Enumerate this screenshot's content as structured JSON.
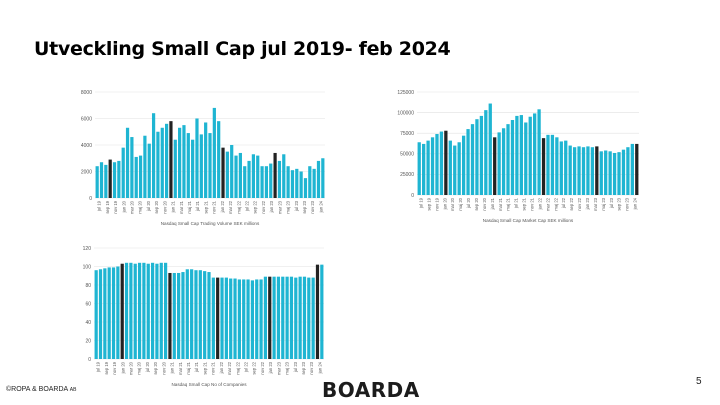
{
  "slide": {
    "title": "Utveckling Small Cap jul 2019- feb 2024",
    "footer_left": "©ROPA & BOARDA",
    "footer_left_suffix": "AB",
    "logo_text": "BOARDA",
    "page_number": "5"
  },
  "colors": {
    "bar": "#1fb5d2",
    "highlight": "#222222",
    "grid": "#e2e2e2"
  },
  "chart_data": [
    {
      "type": "bar",
      "xlabel": "Nasdaq Small Cap Trading Volume SEK millions",
      "ylim": [
        0,
        8000
      ],
      "yticks": [
        0,
        2000,
        4000,
        6000,
        8000
      ],
      "x_tick_labels": [
        "jul 19",
        "sep 19",
        "nov 19",
        "jan 20",
        "mar 20",
        "maj 20",
        "jul 20",
        "sep 20",
        "nov 20",
        "jan 21",
        "mar 21",
        "maj 21",
        "jul 21",
        "sep 21",
        "nov 21",
        "jan 22",
        "mar 22",
        "maj 22",
        "jul 22",
        "sep 22",
        "nov 22",
        "jan 23",
        "mar 23",
        "maj 23",
        "jul 23",
        "sep 23",
        "nov 23",
        "jan 24"
      ],
      "values": [
        2400,
        2700,
        2500,
        2900,
        2700,
        2800,
        3800,
        5300,
        4600,
        3100,
        3200,
        4700,
        4100,
        6400,
        5000,
        5300,
        5600,
        5800,
        4400,
        5300,
        5500,
        4900,
        4400,
        6000,
        4800,
        5700,
        4900,
        6800,
        5800,
        3800,
        3500,
        4000,
        3200,
        3400,
        2400,
        2800,
        3300,
        3200,
        2400,
        2400,
        2600,
        3400,
        2800,
        3300,
        2400,
        2100,
        2200,
        2000,
        1500,
        2400,
        2200,
        2800,
        3000
      ],
      "highlight": [
        3,
        17,
        29,
        41,
        53
      ]
    },
    {
      "type": "bar",
      "xlabel": "Nasdaq Small Cap Market Cap SEK millions",
      "ylim": [
        0,
        125000
      ],
      "yticks": [
        0,
        25000,
        50000,
        75000,
        100000,
        125000
      ],
      "x_tick_labels": [
        "jul 19",
        "sep 19",
        "nov 19",
        "jan 20",
        "mar 20",
        "maj 20",
        "jul 20",
        "sep 20",
        "nov 20",
        "jan 21",
        "mar 21",
        "maj 21",
        "jul 21",
        "sep 21",
        "nov 21",
        "jan 22",
        "mar 22",
        "maj 22",
        "jul 22",
        "sep 22",
        "nov 22",
        "jan 23",
        "mar 23",
        "maj 23",
        "jul 23",
        "sep 23",
        "nov 23",
        "jan 24"
      ],
      "values": [
        64000,
        62000,
        66000,
        70000,
        74000,
        77000,
        78000,
        66000,
        60000,
        64000,
        72000,
        80000,
        86000,
        92000,
        96000,
        103000,
        111000,
        70000,
        76000,
        81000,
        86000,
        91000,
        96000,
        97000,
        88000,
        95000,
        99000,
        104000,
        69000,
        73000,
        73000,
        70000,
        65000,
        66000,
        60000,
        58000,
        59000,
        58000,
        59000,
        58000,
        59000,
        53000,
        54000,
        53000,
        51000,
        52000,
        55000,
        58000,
        62000,
        62000
      ],
      "highlight": [
        6,
        17,
        28,
        40,
        49
      ]
    },
    {
      "type": "bar",
      "xlabel": "Nasdaq Small Cap No of Companies",
      "ylim": [
        0,
        120
      ],
      "yticks": [
        0,
        20,
        40,
        60,
        80,
        100,
        120
      ],
      "x_tick_labels": [
        "jul 19",
        "sep 19",
        "nov 19",
        "jan 20",
        "mar 20",
        "maj 20",
        "jul 20",
        "sep 20",
        "nov 20",
        "jan 21",
        "mar 21",
        "maj 21",
        "jul 21",
        "sep 21",
        "nov 21",
        "jan 22",
        "mar 22",
        "maj 22",
        "jul 22",
        "sep 22",
        "nov 22",
        "jan 23",
        "mar 23",
        "maj 23",
        "jul 23",
        "sep 23",
        "nov 23",
        "jan 24"
      ],
      "values": [
        96,
        97,
        98,
        99,
        99,
        100,
        103,
        104,
        104,
        103,
        104,
        104,
        103,
        104,
        103,
        104,
        104,
        93,
        93,
        93,
        94,
        97,
        97,
        96,
        96,
        95,
        94,
        88,
        88,
        88,
        88,
        87,
        87,
        86,
        86,
        86,
        85,
        86,
        86,
        89,
        89,
        89,
        89,
        89,
        89,
        89,
        88,
        89,
        89,
        88,
        88,
        102,
        102
      ],
      "highlight": [
        6,
        17,
        28,
        40,
        51
      ]
    }
  ]
}
